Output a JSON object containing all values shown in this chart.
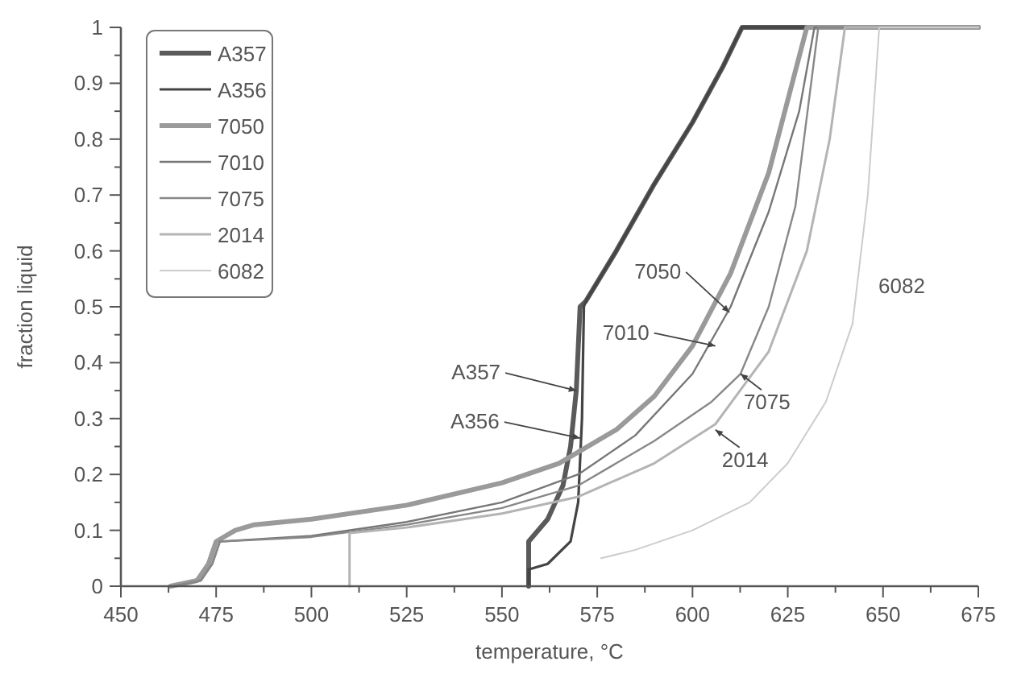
{
  "chart_data": {
    "type": "line",
    "xlabel": "temperature, °C",
    "ylabel": "fraction liquid",
    "xlim": [
      450,
      675
    ],
    "ylim": [
      0,
      1
    ],
    "xticks": [
      450,
      {
        "value": 462.5,
        "label": null
      },
      475,
      {
        "value": 487.5,
        "label": null
      },
      500,
      {
        "value": 512.5,
        "label": null
      },
      525,
      {
        "value": 537.5,
        "label": null
      },
      550,
      {
        "value": 562.5,
        "label": null
      },
      575,
      {
        "value": 587.5,
        "label": null
      },
      600,
      {
        "value": 612.5,
        "label": null
      },
      625,
      {
        "value": 637.5,
        "label": null
      },
      650,
      {
        "value": 662.5,
        "label": null
      },
      675
    ],
    "yticks": [
      0,
      {
        "value": 0.05,
        "label": null
      },
      0.1,
      {
        "value": 0.15,
        "label": null
      },
      0.2,
      {
        "value": 0.25,
        "label": null
      },
      0.3,
      {
        "value": 0.35,
        "label": null
      },
      0.4,
      {
        "value": 0.45,
        "label": null
      },
      0.5,
      {
        "value": 0.55,
        "label": null
      },
      0.6,
      {
        "value": 0.65,
        "label": null
      },
      0.7,
      {
        "value": 0.75,
        "label": null
      },
      0.8,
      {
        "value": 0.85,
        "label": null
      },
      0.9,
      {
        "value": 0.95,
        "label": null
      },
      1
    ],
    "grid": false,
    "legend": "top left",
    "marker": "none",
    "line_style": "solid",
    "series": [
      {
        "name": "A357",
        "color": "#5a5a5a",
        "x": [
          557,
          557,
          562,
          566,
          568,
          569.5,
          570.5,
          572,
          580,
          590,
          600,
          608,
          613,
          675
        ],
        "values": [
          0,
          0.08,
          0.12,
          0.18,
          0.25,
          0.35,
          0.5,
          0.51,
          0.6,
          0.72,
          0.83,
          0.93,
          1,
          1
        ]
      },
      {
        "name": "A356",
        "color": "#444444",
        "x": [
          557,
          557,
          562,
          568,
          570,
          571,
          571.5,
          572,
          580,
          590,
          600,
          608,
          613,
          675
        ],
        "values": [
          0,
          0.03,
          0.04,
          0.08,
          0.15,
          0.3,
          0.5,
          0.51,
          0.6,
          0.72,
          0.83,
          0.93,
          1,
          1
        ]
      },
      {
        "name": "7050",
        "color": "#9a9a9a",
        "x": [
          463,
          470,
          473,
          475,
          480,
          485,
          500,
          525,
          550,
          565,
          580,
          590,
          600,
          610,
          620,
          630,
          675
        ],
        "values": [
          0,
          0.01,
          0.04,
          0.08,
          0.1,
          0.11,
          0.12,
          0.145,
          0.185,
          0.22,
          0.28,
          0.34,
          0.43,
          0.56,
          0.74,
          1,
          1
        ]
      },
      {
        "name": "7010",
        "color": "#777777",
        "x": [
          464,
          471,
          474,
          476,
          500,
          525,
          550,
          570,
          585,
          600,
          610,
          620,
          628,
          632,
          675
        ],
        "values": [
          0,
          0.01,
          0.04,
          0.08,
          0.09,
          0.115,
          0.15,
          0.2,
          0.27,
          0.38,
          0.5,
          0.67,
          0.85,
          1,
          1
        ]
      },
      {
        "name": "7075",
        "color": "#888888",
        "x": [
          464,
          471,
          474,
          476,
          500,
          525,
          550,
          570,
          590,
          605,
          612.6,
          620,
          627,
          633,
          675
        ],
        "values": [
          0,
          0.01,
          0.04,
          0.08,
          0.088,
          0.11,
          0.14,
          0.18,
          0.26,
          0.33,
          0.38,
          0.5,
          0.68,
          1,
          1
        ]
      },
      {
        "name": "2014",
        "color": "#b4b4b4",
        "x": [
          510,
          510,
          525,
          550,
          570,
          590,
          606,
          620,
          630,
          636,
          640,
          675
        ],
        "values": [
          0,
          0.095,
          0.105,
          0.13,
          0.16,
          0.22,
          0.29,
          0.42,
          0.6,
          0.8,
          1,
          1
        ]
      },
      {
        "name": "6082",
        "color": "#cccccc",
        "x": [
          576,
          585,
          600,
          615,
          625,
          635,
          642,
          646,
          649,
          675
        ],
        "values": [
          0.05,
          0.065,
          0.1,
          0.15,
          0.22,
          0.33,
          0.47,
          0.7,
          1,
          1
        ]
      }
    ],
    "annotations": [
      {
        "text": "A357",
        "x": 569.5,
        "y": 0.35
      },
      {
        "text": "A356",
        "x": 570.5,
        "y": 0.265
      },
      {
        "text": "7050",
        "x": 609.7,
        "y": 0.49
      },
      {
        "text": "7010",
        "x": 606,
        "y": 0.43
      },
      {
        "text": "7075",
        "x": 612.6,
        "y": 0.38
      },
      {
        "text": "2014",
        "x": 606,
        "y": 0.28
      },
      "6082"
    ]
  }
}
